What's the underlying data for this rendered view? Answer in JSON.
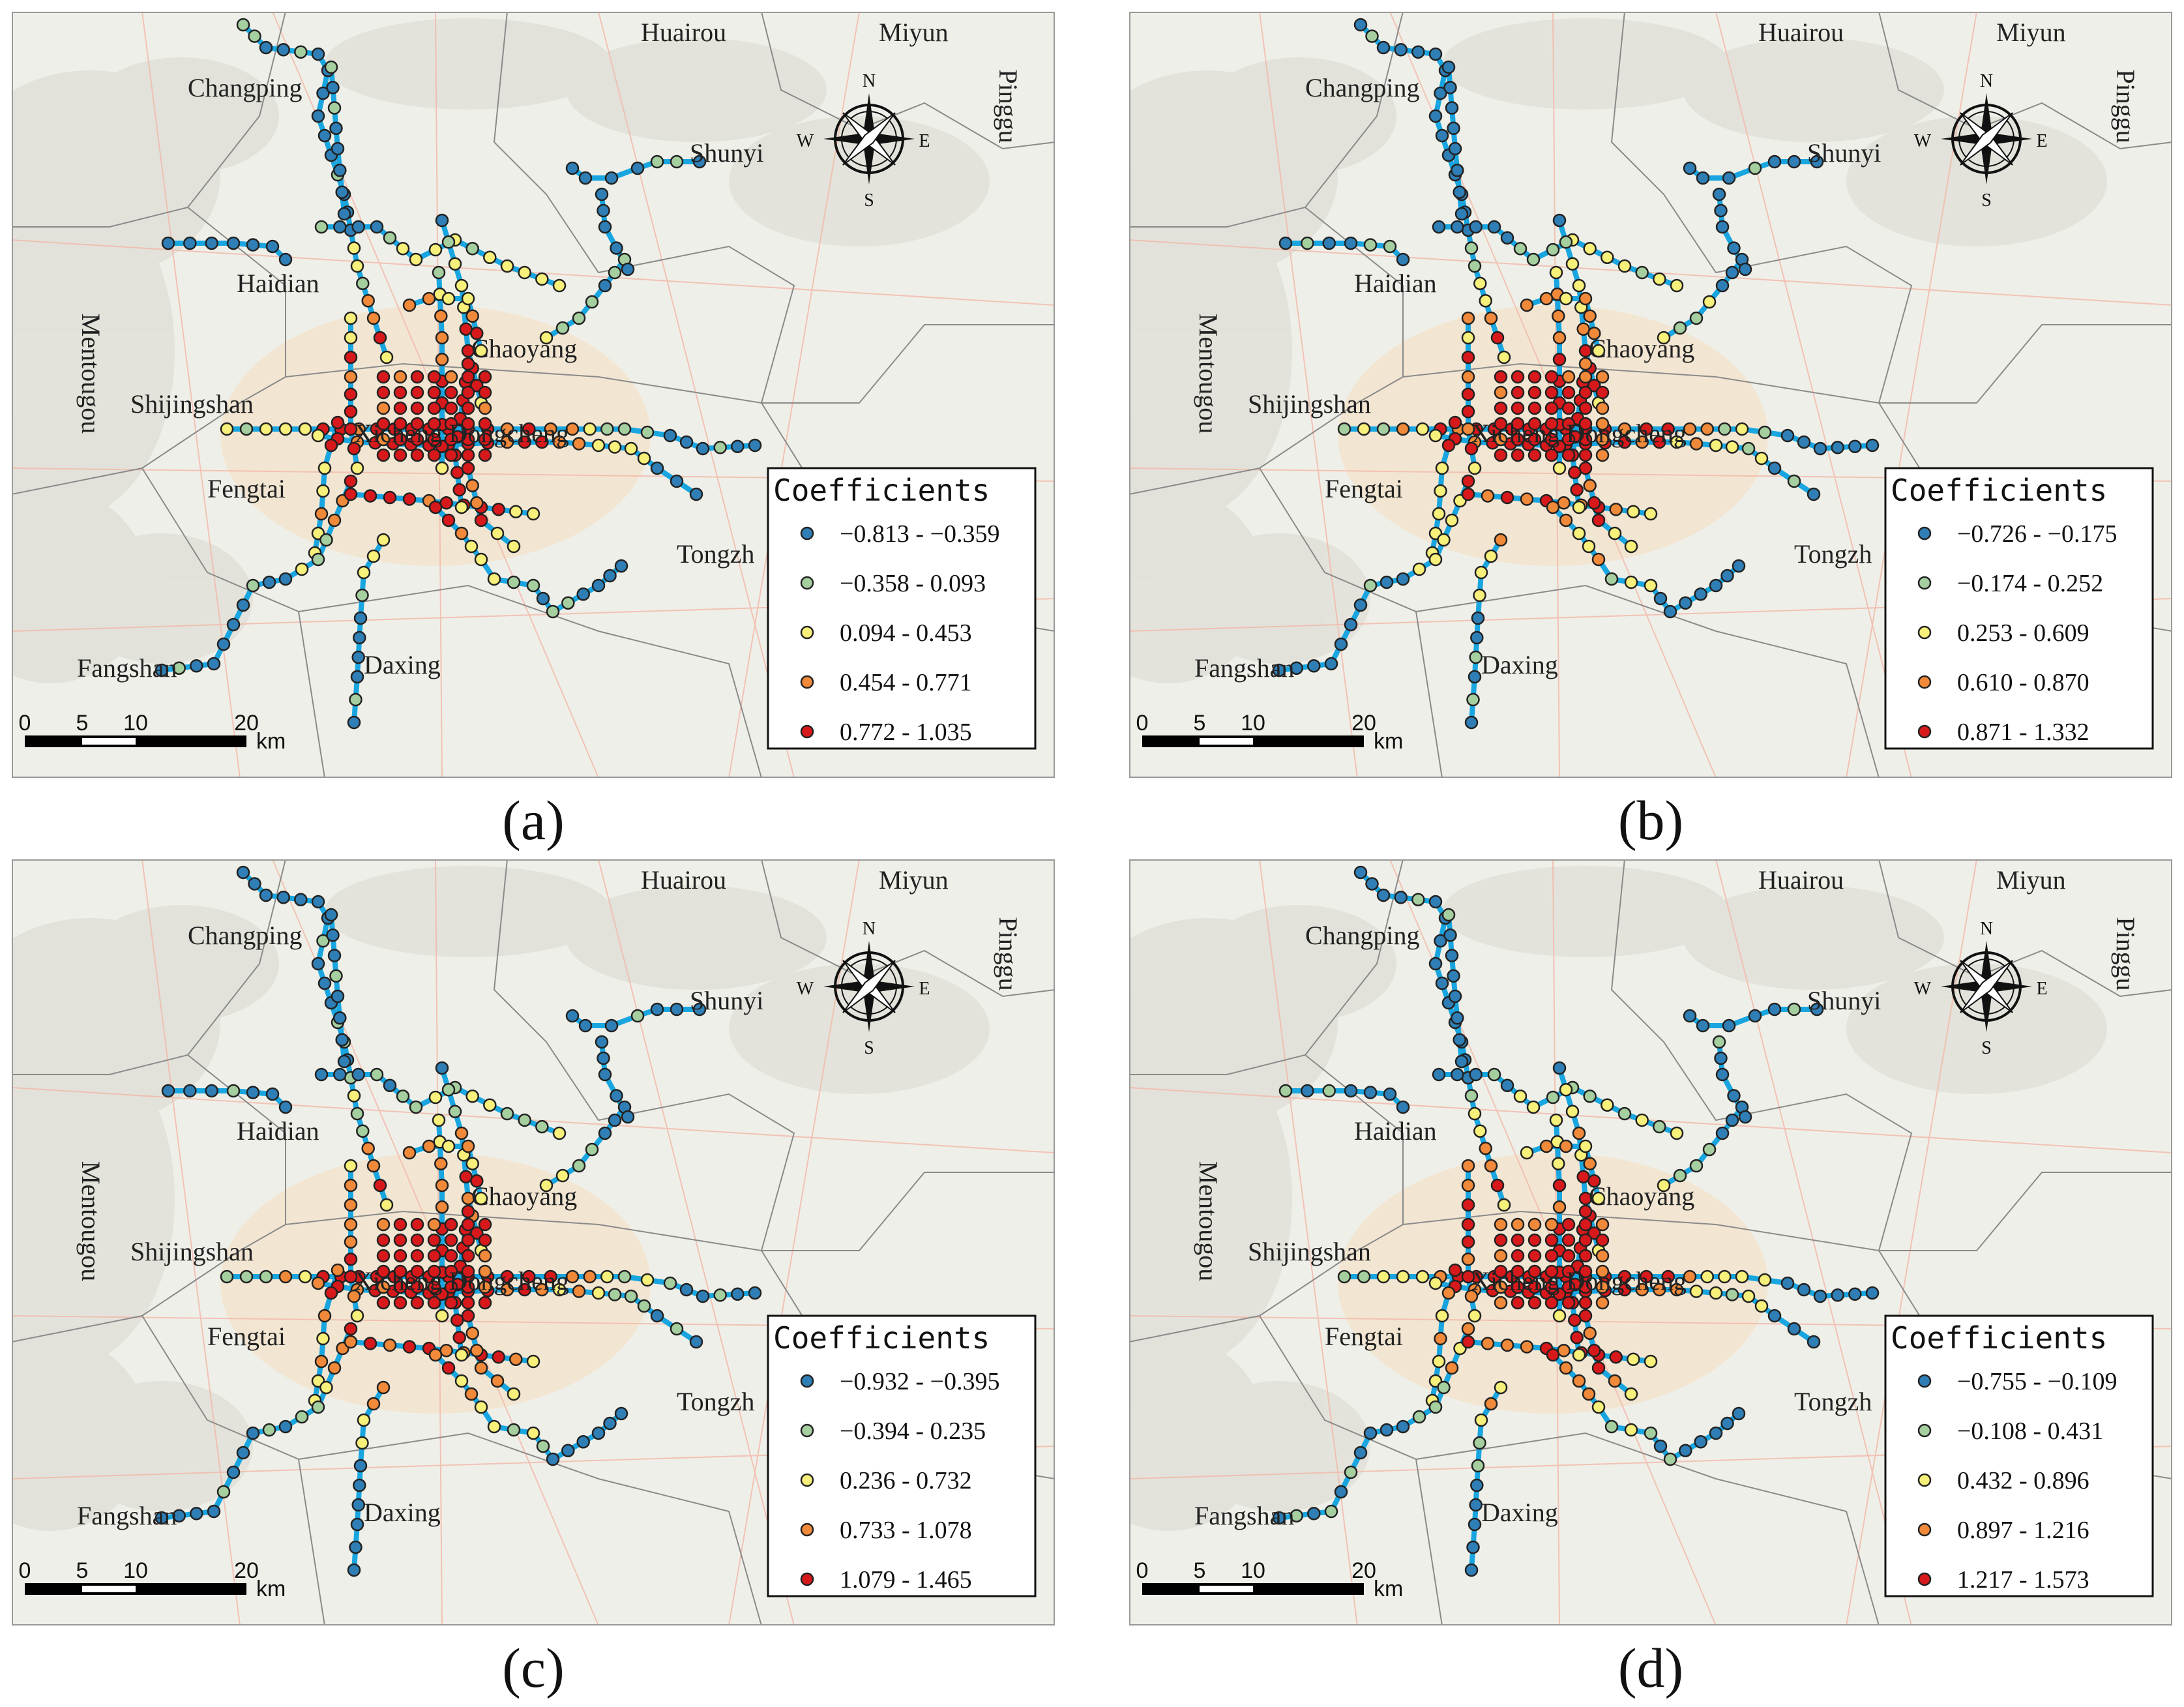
{
  "panels": [
    {
      "label": "(a)",
      "legend": {
        "title": "Coefficients",
        "classes": [
          {
            "range": "−0.813 - −0.359",
            "color": "#2f7fb6"
          },
          {
            "range": "−0.358 - 0.093",
            "color": "#a6cfa0"
          },
          {
            "range": "0.094 - 0.453",
            "color": "#f7f07a"
          },
          {
            "range": "0.454 - 0.771",
            "color": "#f08a3a"
          },
          {
            "range": "0.772 - 1.035",
            "color": "#d7191c"
          }
        ]
      }
    },
    {
      "label": "(b)",
      "legend": {
        "title": "Coefficients",
        "classes": [
          {
            "range": "−0.726 - −0.175",
            "color": "#2f7fb6"
          },
          {
            "range": "−0.174 - 0.252",
            "color": "#a6cfa0"
          },
          {
            "range": "0.253 - 0.609",
            "color": "#f7f07a"
          },
          {
            "range": "0.610 - 0.870",
            "color": "#f08a3a"
          },
          {
            "range": "0.871 - 1.332",
            "color": "#d7191c"
          }
        ]
      }
    },
    {
      "label": "(c)",
      "legend": {
        "title": "Coefficients",
        "classes": [
          {
            "range": "−0.932 - −0.395",
            "color": "#2f7fb6"
          },
          {
            "range": "−0.394 - 0.235",
            "color": "#a6cfa0"
          },
          {
            "range": "0.236 - 0.732",
            "color": "#f7f07a"
          },
          {
            "range": "0.733 - 1.078",
            "color": "#f08a3a"
          },
          {
            "range": "1.079 - 1.465",
            "color": "#d7191c"
          }
        ]
      }
    },
    {
      "label": "(d)",
      "legend": {
        "title": "Coefficients",
        "classes": [
          {
            "range": "−0.755 - −0.109",
            "color": "#2f7fb6"
          },
          {
            "range": "−0.108 - 0.431",
            "color": "#a6cfa0"
          },
          {
            "range": "0.432 - 0.896",
            "color": "#f7f07a"
          },
          {
            "range": "0.897 - 1.216",
            "color": "#f08a3a"
          },
          {
            "range": "1.217 - 1.573",
            "color": "#d7191c"
          }
        ]
      }
    }
  ],
  "districts": {
    "changping": "Changping",
    "huairou": "Huairou",
    "miyun": "Miyun",
    "pinggu": "Pinggu",
    "shunyi": "Shunyi",
    "haidian": "Haidian",
    "mentougou": "Mentougou",
    "chaoyang": "Chaoyang",
    "shijingshan": "Shijingshan",
    "xicheng_dongcheng": "Xicheng Dongcheng",
    "fengtai": "Fengtai",
    "tongzhou": "Tongzh",
    "fangshan": "Fangshan",
    "daxing": "Daxing"
  },
  "compass": {
    "n": "N",
    "s": "S",
    "e": "E",
    "w": "W"
  },
  "scalebar": {
    "ticks": [
      "0",
      "5",
      "10",
      "20"
    ],
    "unit": "km"
  },
  "metro_line_color": "#19a6e0"
}
